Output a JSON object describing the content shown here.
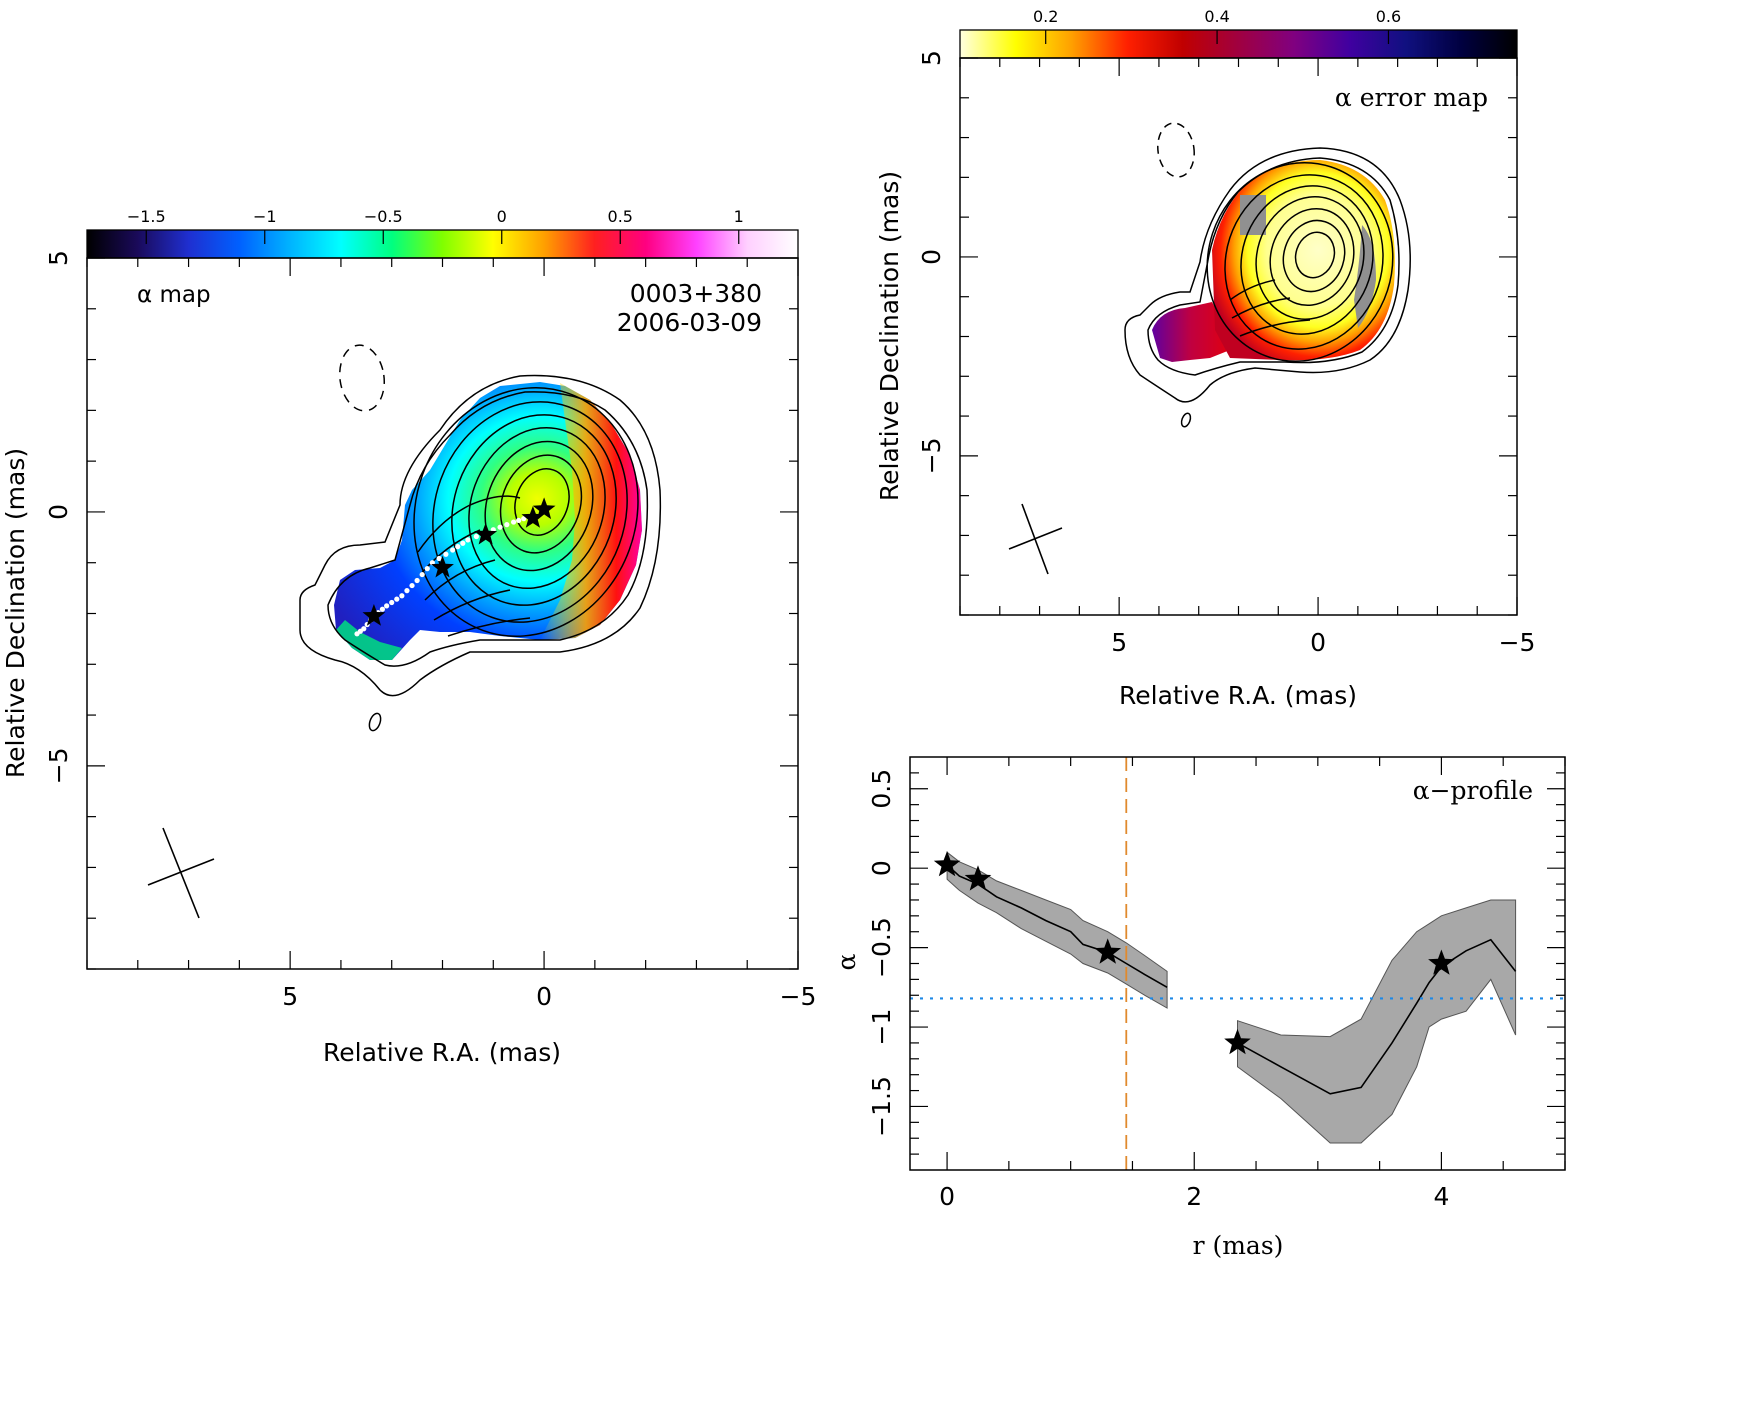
{
  "chart_data": [
    {
      "type": "heatmap",
      "panel": "alpha-map",
      "source": "0003+380",
      "date": "2006-03-09",
      "map_label": "α map",
      "xlabel": "Relative R.A. (mas)",
      "ylabel": "Relative Declination (mas)",
      "xlim": [
        9,
        -5
      ],
      "ylim": [
        -9,
        5
      ],
      "xticks": [
        5,
        0,
        -5
      ],
      "yticks": [
        5,
        0,
        -5
      ],
      "colorbar": {
        "range": [
          -1.75,
          1.25
        ],
        "ticks": [
          -1.5,
          -1,
          -0.5,
          0,
          0.5,
          1
        ],
        "tick_labels": [
          "−1.5",
          "−1",
          "−0.5",
          "0",
          "0.5",
          "1"
        ],
        "colors": [
          "#000000",
          "#1a0a5a",
          "#1f2fd0",
          "#0060ff",
          "#00b4ff",
          "#00ffff",
          "#00ff80",
          "#80ff00",
          "#ffff00",
          "#ffa000",
          "#ff2020",
          "#ff0080",
          "#ff40ff",
          "#ffd0ff",
          "#ffffff"
        ]
      },
      "stars": [
        {
          "x": 0.0,
          "y": 0.05
        },
        {
          "x": 0.22,
          "y": -0.12
        },
        {
          "x": 1.15,
          "y": -0.45
        },
        {
          "x": 2.0,
          "y": -1.1
        },
        {
          "x": 3.35,
          "y": -2.05
        }
      ],
      "ridge": [
        {
          "x": 0.3,
          "y": -0.1
        },
        {
          "x": 0.6,
          "y": -0.2
        },
        {
          "x": 1.0,
          "y": -0.35
        },
        {
          "x": 1.5,
          "y": -0.55
        },
        {
          "x": 1.8,
          "y": -0.75
        },
        {
          "x": 2.2,
          "y": -1.0
        },
        {
          "x": 2.5,
          "y": -1.35
        },
        {
          "x": 2.8,
          "y": -1.65
        },
        {
          "x": 3.1,
          "y": -1.85
        },
        {
          "x": 3.35,
          "y": -2.05
        },
        {
          "x": 3.55,
          "y": -2.3
        },
        {
          "x": 3.75,
          "y": -2.45
        }
      ]
    },
    {
      "type": "heatmap",
      "panel": "alpha-error-map",
      "map_label": "α error map",
      "xlabel": "Relative R.A. (mas)",
      "ylabel": "Relative Declination (mas)",
      "xlim": [
        9,
        -5
      ],
      "ylim": [
        -9,
        5
      ],
      "xticks": [
        5,
        0,
        -5
      ],
      "yticks": [
        5,
        0,
        -5
      ],
      "colorbar": {
        "range": [
          0.1,
          0.75
        ],
        "ticks": [
          0.2,
          0.4,
          0.6
        ],
        "tick_labels": [
          "0.2",
          "0.4",
          "0.6"
        ],
        "colors": [
          "#ffffe0",
          "#ffff00",
          "#ffa000",
          "#ff2000",
          "#c00000",
          "#a00040",
          "#800080",
          "#4000a0",
          "#101080",
          "#000040",
          "#000000"
        ]
      }
    },
    {
      "type": "line",
      "panel": "alpha-profile",
      "title": "α−profile",
      "xlabel": "r (mas)",
      "ylabel": "α",
      "xlim": [
        -0.3,
        5.0
      ],
      "ylim": [
        -1.9,
        0.7
      ],
      "xticks": [
        0,
        2,
        4
      ],
      "yticks": [
        0.5,
        0,
        -0.5,
        -1,
        -1.5
      ],
      "ytick_labels": [
        "0.5",
        "0",
        "−0.5",
        "−1",
        "−1.5"
      ],
      "hline": -0.82,
      "vline": 1.45,
      "series": [
        {
          "x": [
            0,
            0.1,
            0.25,
            0.4,
            0.6,
            0.8,
            1.0,
            1.1,
            1.3,
            1.45,
            1.6,
            1.78
          ],
          "y": [
            0.02,
            -0.05,
            -0.1,
            -0.18,
            -0.25,
            -0.33,
            -0.4,
            -0.48,
            -0.53,
            -0.6,
            -0.67,
            -0.75
          ],
          "upper": [
            0.1,
            0.04,
            -0.01,
            -0.08,
            -0.14,
            -0.2,
            -0.26,
            -0.33,
            -0.4,
            -0.47,
            -0.55,
            -0.65
          ],
          "lower": [
            -0.07,
            -0.14,
            -0.22,
            -0.28,
            -0.38,
            -0.46,
            -0.54,
            -0.6,
            -0.66,
            -0.73,
            -0.8,
            -0.88
          ]
        },
        {
          "x": [
            2.35,
            2.7,
            3.1,
            3.35,
            3.6,
            3.8,
            3.9,
            4.0,
            4.2,
            4.4,
            4.6
          ],
          "y": [
            -1.1,
            -1.25,
            -1.42,
            -1.38,
            -1.1,
            -0.85,
            -0.72,
            -0.62,
            -0.52,
            -0.45,
            -0.65
          ],
          "upper": [
            -0.96,
            -1.05,
            -1.06,
            -0.95,
            -0.58,
            -0.4,
            -0.35,
            -0.3,
            -0.25,
            -0.2,
            -0.2
          ],
          "lower": [
            -1.25,
            -1.45,
            -1.73,
            -1.73,
            -1.55,
            -1.25,
            -1.0,
            -0.95,
            -0.9,
            -0.7,
            -1.05
          ]
        }
      ],
      "stars": [
        {
          "x": 0.0,
          "y": 0.02
        },
        {
          "x": 0.25,
          "y": -0.07
        },
        {
          "x": 1.3,
          "y": -0.53
        },
        {
          "x": 2.35,
          "y": -1.1
        },
        {
          "x": 4.0,
          "y": -0.6
        }
      ]
    }
  ]
}
